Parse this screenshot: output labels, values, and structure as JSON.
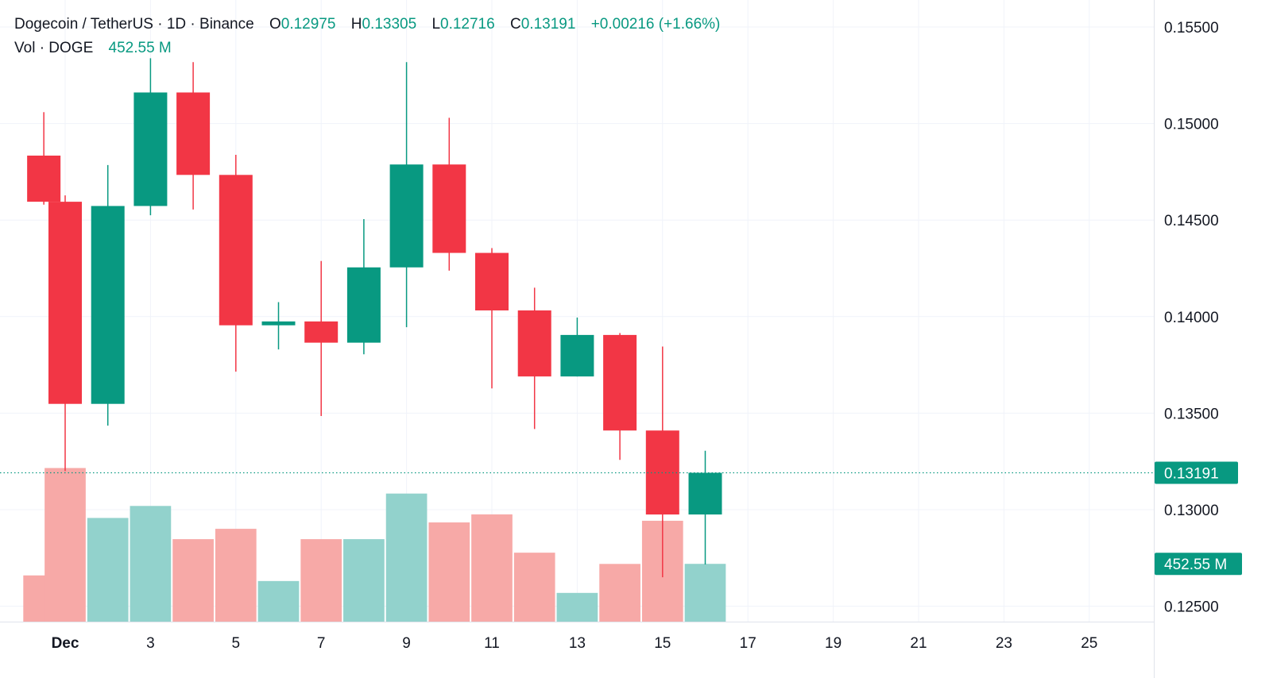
{
  "chart_data": {
    "type": "candlestick",
    "title": "Dogecoin / TetherUS · 1D · Binance",
    "ohlc": {
      "open_label": "O",
      "open": "0.12975",
      "high_label": "H",
      "high": "0.13305",
      "low_label": "L",
      "low": "0.12716",
      "close_label": "C",
      "close": "0.13191",
      "change": "+0.00216 (+1.66%)"
    },
    "volume_legend": {
      "label": "Vol · DOGE",
      "value": "452.55 M"
    },
    "current_price_label": "0.13191",
    "current_volume_label": "452.55 M",
    "current_price": 0.13191,
    "y_ticks": [
      "0.15500",
      "0.15000",
      "0.14500",
      "0.14000",
      "0.13500",
      "0.13000",
      "0.12500"
    ],
    "y_tick_values": [
      0.155,
      0.15,
      0.145,
      0.14,
      0.135,
      0.13,
      0.125
    ],
    "ylim": [
      0.1242,
      0.1564
    ],
    "x_ticks": [
      {
        "label": "Dec",
        "day": 1
      },
      {
        "label": "3",
        "day": 3
      },
      {
        "label": "5",
        "day": 5
      },
      {
        "label": "7",
        "day": 7
      },
      {
        "label": "9",
        "day": 9
      },
      {
        "label": "11",
        "day": 11
      },
      {
        "label": "13",
        "day": 13
      },
      {
        "label": "15",
        "day": 15
      },
      {
        "label": "17",
        "day": 17
      },
      {
        "label": "19",
        "day": 19
      },
      {
        "label": "21",
        "day": 21
      },
      {
        "label": "23",
        "day": 23
      },
      {
        "label": "25",
        "day": 25
      }
    ],
    "candles": [
      {
        "day": 0.5,
        "open": 0.14834,
        "high": 0.15059,
        "low": 0.1458,
        "close": 0.14595
      },
      {
        "day": 1,
        "open": 0.14595,
        "high": 0.14628,
        "low": 0.132,
        "close": 0.13548
      },
      {
        "day": 2,
        "open": 0.13548,
        "high": 0.14785,
        "low": 0.13435,
        "close": 0.14573
      },
      {
        "day": 3,
        "open": 0.14573,
        "high": 0.15338,
        "low": 0.14525,
        "close": 0.15161
      },
      {
        "day": 4,
        "open": 0.15161,
        "high": 0.15318,
        "low": 0.14555,
        "close": 0.14734
      },
      {
        "day": 5,
        "open": 0.14734,
        "high": 0.14838,
        "low": 0.13715,
        "close": 0.13955
      },
      {
        "day": 6,
        "open": 0.13955,
        "high": 0.14075,
        "low": 0.1383,
        "close": 0.13975
      },
      {
        "day": 7,
        "open": 0.13975,
        "high": 0.14288,
        "low": 0.13485,
        "close": 0.13865
      },
      {
        "day": 8,
        "open": 0.13865,
        "high": 0.14505,
        "low": 0.13805,
        "close": 0.14255
      },
      {
        "day": 9,
        "open": 0.14255,
        "high": 0.15318,
        "low": 0.13945,
        "close": 0.14788
      },
      {
        "day": 10,
        "open": 0.14788,
        "high": 0.1503,
        "low": 0.14238,
        "close": 0.1433
      },
      {
        "day": 11,
        "open": 0.1433,
        "high": 0.14355,
        "low": 0.13628,
        "close": 0.14032
      },
      {
        "day": 12,
        "open": 0.14032,
        "high": 0.1415,
        "low": 0.13418,
        "close": 0.1369
      },
      {
        "day": 13,
        "open": 0.1369,
        "high": 0.13995,
        "low": 0.1369,
        "close": 0.13905
      },
      {
        "day": 14,
        "open": 0.13905,
        "high": 0.13915,
        "low": 0.13258,
        "close": 0.1341
      },
      {
        "day": 15,
        "open": 0.1341,
        "high": 0.13845,
        "low": 0.1265,
        "close": 0.12975
      },
      {
        "day": 16,
        "open": 0.12975,
        "high": 0.13305,
        "low": 0.12716,
        "close": 0.13191
      }
    ],
    "volume_units": "M DOGE (estimated)",
    "volume_max": 1200,
    "volumes": [
      {
        "day": 0.5,
        "value": 362,
        "direction": "down"
      },
      {
        "day": 1,
        "value": 1203,
        "direction": "down"
      },
      {
        "day": 2,
        "value": 812,
        "direction": "up"
      },
      {
        "day": 3,
        "value": 906,
        "direction": "up"
      },
      {
        "day": 4,
        "value": 646,
        "direction": "down"
      },
      {
        "day": 5,
        "value": 727,
        "direction": "down"
      },
      {
        "day": 6,
        "value": 318,
        "direction": "up"
      },
      {
        "day": 7,
        "value": 646,
        "direction": "down"
      },
      {
        "day": 8,
        "value": 646,
        "direction": "up"
      },
      {
        "day": 9,
        "value": 1003,
        "direction": "up"
      },
      {
        "day": 10,
        "value": 777,
        "direction": "down"
      },
      {
        "day": 11,
        "value": 840,
        "direction": "down"
      },
      {
        "day": 12,
        "value": 540,
        "direction": "down"
      },
      {
        "day": 13,
        "value": 225,
        "direction": "up"
      },
      {
        "day": 14,
        "value": 452,
        "direction": "down"
      },
      {
        "day": 15,
        "value": 790,
        "direction": "down"
      },
      {
        "day": 16,
        "value": 452.55,
        "direction": "up"
      }
    ]
  },
  "colors": {
    "up": "#089981",
    "down": "#f23645",
    "up_volume": "#92d2cc",
    "down_volume": "#f7a9a7",
    "grid": "#f0f3fa",
    "text": "#131722",
    "axis_text": "#131722"
  }
}
